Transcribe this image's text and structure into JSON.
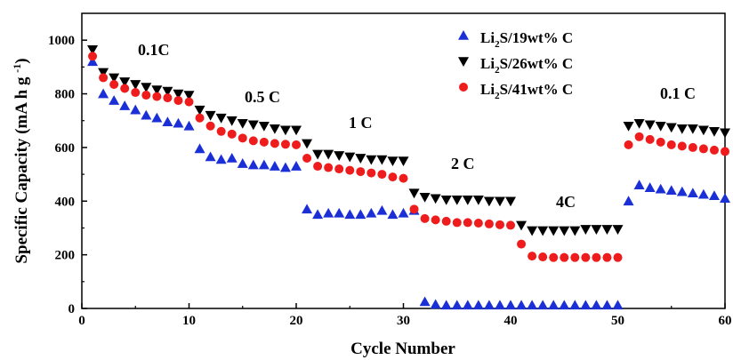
{
  "chart_data": {
    "type": "scatter",
    "title": "",
    "xlabel": "Cycle Number",
    "ylabel": "Specific Capacity (mA h g⁻¹)",
    "xlim": [
      0,
      60
    ],
    "ylim": [
      0,
      1100
    ],
    "x_ticks": [
      0,
      10,
      20,
      30,
      40,
      50,
      60
    ],
    "y_ticks": [
      0,
      200,
      400,
      600,
      800,
      1000
    ],
    "grid": false,
    "legend_position": "top-right",
    "series": [
      {
        "name": "Li2S/19wt% C",
        "legend_main": "Li",
        "legend_sub": "2",
        "legend_rest": "S/19wt% C",
        "marker": "triangle-up",
        "color": "#1a2fd6",
        "x": [
          1,
          2,
          3,
          4,
          5,
          6,
          7,
          8,
          9,
          10,
          11,
          12,
          13,
          14,
          15,
          16,
          17,
          18,
          19,
          20,
          21,
          22,
          23,
          24,
          25,
          26,
          27,
          28,
          29,
          30,
          31,
          32,
          33,
          34,
          35,
          36,
          37,
          38,
          39,
          40,
          41,
          42,
          43,
          44,
          45,
          46,
          47,
          48,
          49,
          50,
          51,
          52,
          53,
          54,
          55,
          56,
          57,
          58,
          59,
          60
        ],
        "y": [
          920,
          800,
          775,
          755,
          740,
          720,
          710,
          695,
          690,
          680,
          595,
          565,
          555,
          560,
          540,
          535,
          535,
          530,
          525,
          530,
          370,
          350,
          355,
          355,
          350,
          350,
          355,
          365,
          350,
          355,
          365,
          25,
          15,
          12,
          12,
          12,
          12,
          12,
          12,
          12,
          12,
          12,
          12,
          12,
          12,
          12,
          12,
          12,
          12,
          12,
          400,
          460,
          450,
          445,
          440,
          435,
          430,
          425,
          420,
          410
        ]
      },
      {
        "name": "Li2S/26wt% C",
        "legend_main": "Li",
        "legend_sub": "2",
        "legend_rest": "S/26wt% C",
        "marker": "triangle-down",
        "color": "#000000",
        "x": [
          1,
          2,
          3,
          4,
          5,
          6,
          7,
          8,
          9,
          10,
          11,
          12,
          13,
          14,
          15,
          16,
          17,
          18,
          19,
          20,
          21,
          22,
          23,
          24,
          25,
          26,
          27,
          28,
          29,
          30,
          31,
          32,
          33,
          34,
          35,
          36,
          37,
          38,
          39,
          40,
          41,
          42,
          43,
          44,
          45,
          46,
          47,
          48,
          49,
          50,
          51,
          52,
          53,
          54,
          55,
          56,
          57,
          58,
          59,
          60
        ],
        "y": [
          965,
          880,
          860,
          845,
          835,
          825,
          815,
          810,
          800,
          795,
          740,
          720,
          710,
          700,
          690,
          685,
          680,
          670,
          665,
          665,
          615,
          575,
          575,
          570,
          565,
          560,
          555,
          555,
          550,
          550,
          430,
          415,
          410,
          405,
          405,
          405,
          405,
          400,
          400,
          400,
          310,
          290,
          290,
          290,
          290,
          290,
          295,
          295,
          295,
          295,
          680,
          690,
          685,
          680,
          675,
          670,
          670,
          665,
          660,
          655
        ]
      },
      {
        "name": "Li2S/41wt% C",
        "legend_main": "Li",
        "legend_sub": "2",
        "legend_rest": "S/41wt% C",
        "marker": "circle",
        "color": "#ee1c1c",
        "x": [
          1,
          2,
          3,
          4,
          5,
          6,
          7,
          8,
          9,
          10,
          11,
          12,
          13,
          14,
          15,
          16,
          17,
          18,
          19,
          20,
          21,
          22,
          23,
          24,
          25,
          26,
          27,
          28,
          29,
          30,
          31,
          32,
          33,
          34,
          35,
          36,
          37,
          38,
          39,
          40,
          41,
          42,
          43,
          44,
          45,
          46,
          47,
          48,
          49,
          50,
          51,
          52,
          53,
          54,
          55,
          56,
          57,
          58,
          59,
          60
        ],
        "y": [
          940,
          860,
          835,
          820,
          805,
          795,
          790,
          785,
          775,
          770,
          710,
          680,
          660,
          650,
          635,
          625,
          620,
          615,
          612,
          610,
          560,
          530,
          525,
          520,
          515,
          510,
          505,
          500,
          490,
          485,
          370,
          335,
          330,
          325,
          320,
          320,
          318,
          315,
          312,
          310,
          240,
          195,
          192,
          190,
          190,
          190,
          190,
          190,
          190,
          190,
          610,
          640,
          630,
          620,
          610,
          605,
          600,
          595,
          590,
          585
        ]
      }
    ],
    "annotations": [
      "0.1C",
      "0.5 C",
      "1 C",
      "2 C",
      "4C",
      "0.1 C"
    ]
  }
}
